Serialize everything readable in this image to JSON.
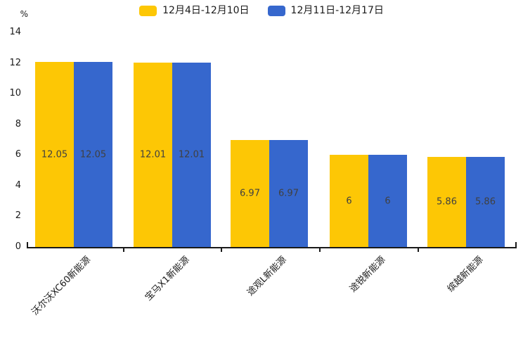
{
  "chart_data": {
    "type": "bar",
    "title": "",
    "categories": [
      "沃尔沃XC60新能源",
      "宝马X1新能源",
      "途观L新能源",
      "途锐新能源",
      "缤越新能源"
    ],
    "series": [
      {
        "name": "12月4日-12月10日",
        "color": "#FDC705",
        "values": [
          12.05,
          12.01,
          6.97,
          6,
          5.86
        ],
        "labels": [
          "12.05",
          "12.01",
          "6.97",
          "6",
          "5.86"
        ]
      },
      {
        "name": "12月11日-12月17日",
        "color": "#3667CD",
        "values": [
          12.05,
          12.01,
          6.97,
          6,
          5.86
        ],
        "labels": [
          "12.05",
          "12.01",
          "6.97",
          "6",
          "5.86"
        ]
      }
    ],
    "xlabel": "",
    "ylabel": "%",
    "ylim": [
      0,
      14
    ],
    "yticks": [
      0,
      2,
      4,
      6,
      8,
      10,
      12,
      14
    ],
    "grid": false,
    "legend_position": "top",
    "axis_color": "#1a1a1a",
    "value_label_color": "#404040"
  }
}
